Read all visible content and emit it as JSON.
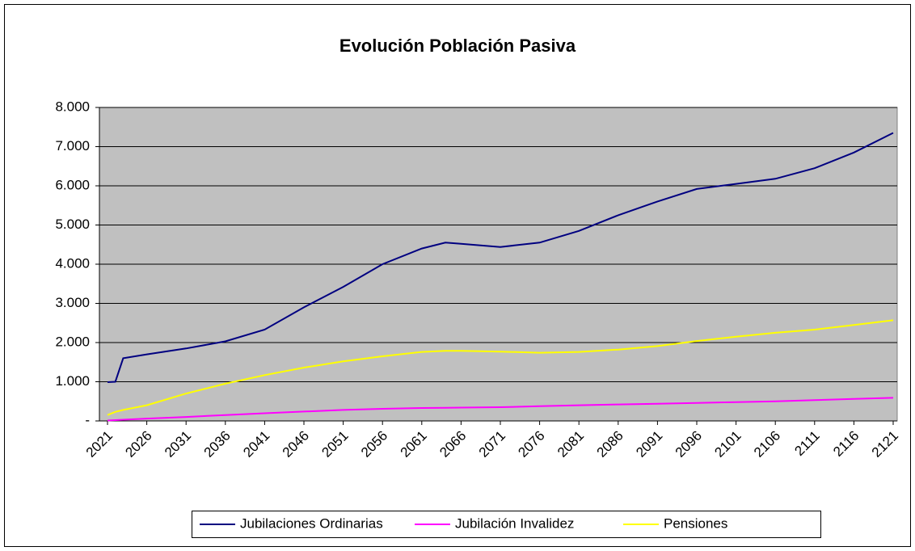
{
  "chart_data": {
    "type": "line",
    "title": "Evolución Población Pasiva",
    "x": [
      2021,
      2022,
      2023,
      2026,
      2031,
      2036,
      2041,
      2046,
      2051,
      2056,
      2061,
      2064,
      2066,
      2071,
      2076,
      2081,
      2086,
      2091,
      2096,
      2101,
      2106,
      2111,
      2116,
      2121
    ],
    "series": [
      {
        "name": "Jubilaciones Ordinarias",
        "color": "#000080",
        "values": [
          990,
          1000,
          1600,
          1700,
          1850,
          2030,
          2330,
          2900,
          3420,
          4000,
          4400,
          4550,
          4520,
          4440,
          4550,
          4850,
          5250,
          5600,
          5920,
          6050,
          6180,
          6450,
          6850,
          7350
        ]
      },
      {
        "name": "Jubilación Invalidez",
        "color": "#ff00ff",
        "values": [
          10,
          20,
          30,
          60,
          100,
          150,
          195,
          240,
          280,
          310,
          330,
          335,
          340,
          350,
          375,
          400,
          420,
          440,
          460,
          480,
          500,
          530,
          560,
          590
        ]
      },
      {
        "name": "Pensiones",
        "color": "#ffff00",
        "values": [
          150,
          230,
          280,
          400,
          700,
          950,
          1170,
          1360,
          1520,
          1650,
          1760,
          1790,
          1790,
          1770,
          1740,
          1760,
          1820,
          1910,
          2040,
          2150,
          2250,
          2330,
          2450,
          2570
        ]
      }
    ],
    "xlim": [
      2021,
      2121
    ],
    "xticks": [
      2021,
      2026,
      2031,
      2036,
      2041,
      2046,
      2051,
      2056,
      2061,
      2066,
      2071,
      2076,
      2081,
      2086,
      2091,
      2096,
      2101,
      2106,
      2111,
      2116,
      2121
    ],
    "ylim": [
      0,
      8000
    ],
    "yticks": [
      {
        "value": 0,
        "label": "-"
      },
      {
        "value": 1000,
        "label": "1.000"
      },
      {
        "value": 2000,
        "label": "2.000"
      },
      {
        "value": 3000,
        "label": "3.000"
      },
      {
        "value": 4000,
        "label": "4.000"
      },
      {
        "value": 5000,
        "label": "5.000"
      },
      {
        "value": 6000,
        "label": "6.000"
      },
      {
        "value": 7000,
        "label": "7.000"
      },
      {
        "value": 8000,
        "label": "8.000"
      }
    ],
    "grid": true,
    "legend": "bottom"
  }
}
